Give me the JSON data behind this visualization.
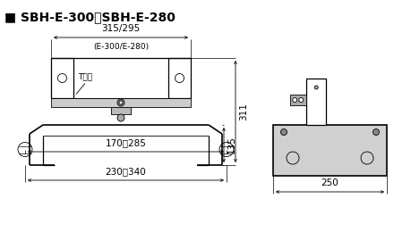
{
  "title": "■ SBH-E-300／SBH-E-280",
  "title_fontsize": 10,
  "bg_color": "#ffffff",
  "line_color": "#000000",
  "font_size": 7.5,
  "small_font": 6.5
}
